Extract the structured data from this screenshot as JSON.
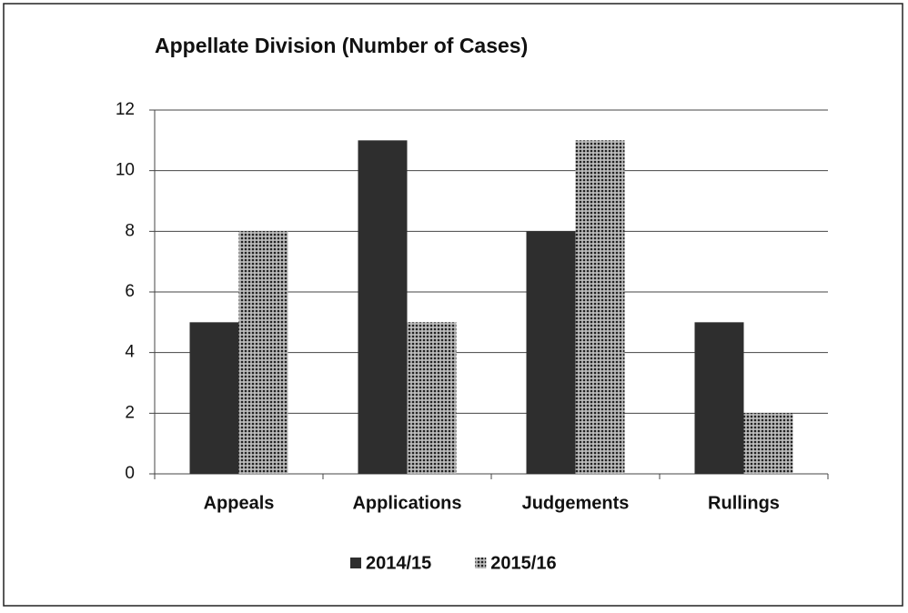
{
  "chart_data": {
    "type": "bar",
    "title": "Appellate  Division (Number of Cases)",
    "categories": [
      "Appeals",
      "Applications",
      "Judgements",
      "Rullings"
    ],
    "series": [
      {
        "name": "2014/15",
        "color": "#2e2e2e",
        "values": [
          5,
          11,
          8,
          5
        ]
      },
      {
        "name": "2015/16",
        "color": "#3a3a3a",
        "values": [
          8,
          5,
          11,
          2
        ]
      }
    ],
    "ylim": [
      0,
      12
    ],
    "yticks": [
      0,
      2,
      4,
      6,
      8,
      10,
      12
    ],
    "grid": true,
    "legend": "bottom"
  }
}
